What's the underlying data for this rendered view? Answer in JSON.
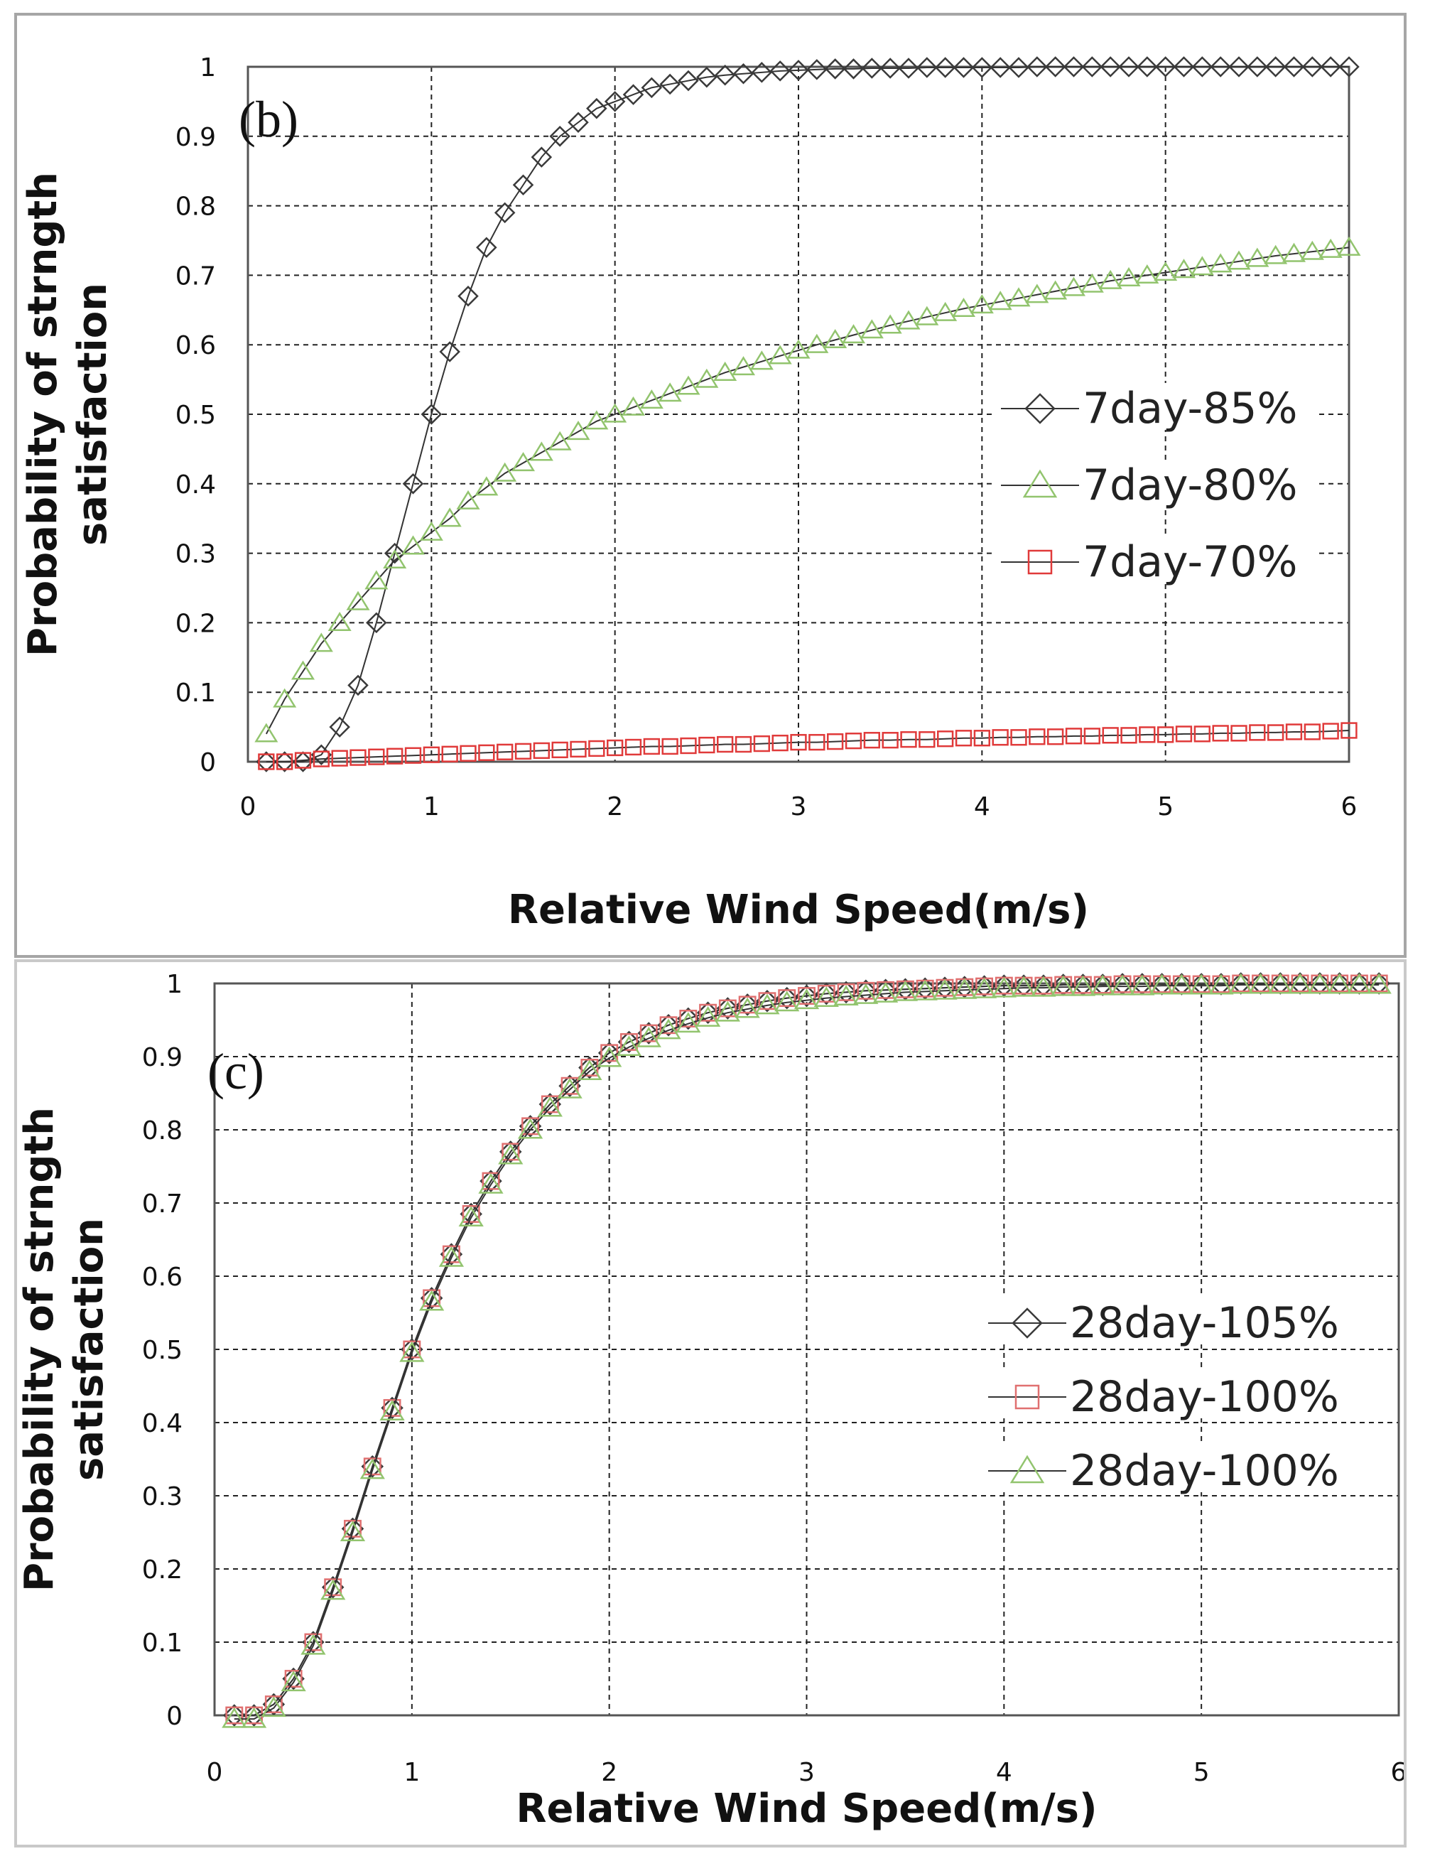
{
  "chart_data": [
    {
      "type": "line",
      "panel_label": "(b)",
      "title": "",
      "xlabel": "Relative Wind Speed(m/s)",
      "ylabel_lines": [
        "Probability of strngth",
        "satisfaction"
      ],
      "xlim": [
        0,
        6
      ],
      "ylim": [
        0,
        1
      ],
      "xticks": [
        "0",
        "1",
        "2",
        "3",
        "4",
        "5",
        "6"
      ],
      "yticks": [
        "0",
        "0.1",
        "0.2",
        "0.3",
        "0.4",
        "0.5",
        "0.6",
        "0.7",
        "0.8",
        "0.9",
        "1"
      ],
      "grid": true,
      "legend_position": "middle-right",
      "x": [
        0.1,
        0.2,
        0.3,
        0.4,
        0.5,
        0.6,
        0.7,
        0.8,
        0.9,
        1.0,
        1.1,
        1.2,
        1.3,
        1.4,
        1.5,
        1.6,
        1.7,
        1.8,
        1.9,
        2.0,
        2.1,
        2.2,
        2.3,
        2.4,
        2.5,
        2.6,
        2.7,
        2.8,
        2.9,
        3.0,
        3.1,
        3.2,
        3.3,
        3.4,
        3.5,
        3.6,
        3.7,
        3.8,
        3.9,
        4.0,
        4.1,
        4.2,
        4.3,
        4.4,
        4.5,
        4.6,
        4.7,
        4.8,
        4.9,
        5.0,
        5.1,
        5.2,
        5.3,
        5.4,
        5.5,
        5.6,
        5.7,
        5.8,
        5.9,
        6.0
      ],
      "series": [
        {
          "name": "7day-85%",
          "marker": "diamond",
          "color": "#3a3a3a",
          "values": [
            0.0,
            0.0,
            0.0,
            0.01,
            0.05,
            0.11,
            0.2,
            0.3,
            0.4,
            0.5,
            0.59,
            0.67,
            0.74,
            0.79,
            0.83,
            0.87,
            0.9,
            0.92,
            0.94,
            0.95,
            0.96,
            0.97,
            0.975,
            0.98,
            0.985,
            0.988,
            0.99,
            0.992,
            0.994,
            0.995,
            0.996,
            0.997,
            0.997,
            0.998,
            0.998,
            0.998,
            0.999,
            0.999,
            0.999,
            0.999,
            0.999,
            0.999,
            1.0,
            1.0,
            1.0,
            1.0,
            1.0,
            1.0,
            1.0,
            1.0,
            1.0,
            1.0,
            1.0,
            1.0,
            1.0,
            1.0,
            1.0,
            1.0,
            1.0,
            1.0
          ]
        },
        {
          "name": "7day-80%",
          "marker": "triangle",
          "color": "#92c46e",
          "values": [
            0.04,
            0.09,
            0.13,
            0.17,
            0.2,
            0.23,
            0.26,
            0.29,
            0.31,
            0.33,
            0.35,
            0.375,
            0.395,
            0.415,
            0.43,
            0.445,
            0.46,
            0.475,
            0.49,
            0.5,
            0.51,
            0.52,
            0.53,
            0.54,
            0.55,
            0.56,
            0.568,
            0.576,
            0.584,
            0.592,
            0.6,
            0.607,
            0.614,
            0.621,
            0.628,
            0.634,
            0.64,
            0.646,
            0.652,
            0.657,
            0.662,
            0.667,
            0.672,
            0.677,
            0.682,
            0.687,
            0.692,
            0.696,
            0.7,
            0.704,
            0.708,
            0.712,
            0.716,
            0.72,
            0.724,
            0.728,
            0.731,
            0.734,
            0.737,
            0.74
          ]
        },
        {
          "name": "7day-70%",
          "marker": "square",
          "color": "#e03a3a",
          "values": [
            0.0,
            0.0,
            0.002,
            0.004,
            0.005,
            0.006,
            0.007,
            0.008,
            0.009,
            0.01,
            0.011,
            0.012,
            0.013,
            0.014,
            0.015,
            0.016,
            0.017,
            0.018,
            0.019,
            0.02,
            0.021,
            0.022,
            0.022,
            0.023,
            0.024,
            0.025,
            0.025,
            0.026,
            0.027,
            0.028,
            0.028,
            0.029,
            0.03,
            0.031,
            0.031,
            0.032,
            0.032,
            0.033,
            0.034,
            0.034,
            0.035,
            0.035,
            0.036,
            0.036,
            0.037,
            0.037,
            0.038,
            0.038,
            0.039,
            0.039,
            0.04,
            0.04,
            0.041,
            0.041,
            0.042,
            0.042,
            0.043,
            0.043,
            0.044,
            0.045
          ]
        }
      ]
    },
    {
      "type": "line",
      "panel_label": "(c)",
      "title": "",
      "xlabel": "Relative Wind Speed(m/s)",
      "ylabel_lines": [
        "Probability of strngth",
        "satisfaction"
      ],
      "xlim": [
        0,
        6
      ],
      "ylim": [
        0,
        1
      ],
      "xticks": [
        "0",
        "1",
        "2",
        "3",
        "4",
        "5",
        "6"
      ],
      "yticks": [
        "0",
        "0.1",
        "0.2",
        "0.3",
        "0.4",
        "0.5",
        "0.6",
        "0.7",
        "0.8",
        "0.9",
        "1"
      ],
      "grid": true,
      "legend_position": "middle-right",
      "x": [
        0.1,
        0.2,
        0.3,
        0.4,
        0.5,
        0.6,
        0.7,
        0.8,
        0.9,
        1.0,
        1.1,
        1.2,
        1.3,
        1.4,
        1.5,
        1.6,
        1.7,
        1.8,
        1.9,
        2.0,
        2.1,
        2.2,
        2.3,
        2.4,
        2.5,
        2.6,
        2.7,
        2.8,
        2.9,
        3.0,
        3.1,
        3.2,
        3.3,
        3.4,
        3.5,
        3.6,
        3.7,
        3.8,
        3.9,
        4.0,
        4.1,
        4.2,
        4.3,
        4.4,
        4.5,
        4.6,
        4.7,
        4.8,
        4.9,
        5.0,
        5.1,
        5.2,
        5.3,
        5.4,
        5.5,
        5.6,
        5.7,
        5.8,
        5.9
      ],
      "series": [
        {
          "name": "28day-105%",
          "marker": "diamond",
          "color": "#3a3a3a",
          "values": [
            0.0,
            0.0,
            0.015,
            0.05,
            0.1,
            0.175,
            0.255,
            0.34,
            0.42,
            0.5,
            0.57,
            0.63,
            0.685,
            0.73,
            0.77,
            0.805,
            0.835,
            0.86,
            0.885,
            0.905,
            0.92,
            0.932,
            0.943,
            0.952,
            0.96,
            0.966,
            0.971,
            0.976,
            0.98,
            0.983,
            0.986,
            0.988,
            0.99,
            0.991,
            0.992,
            0.993,
            0.994,
            0.995,
            0.996,
            0.997,
            0.997,
            0.997,
            0.998,
            0.998,
            0.998,
            0.999,
            0.999,
            0.999,
            0.999,
            0.999,
            0.999,
            1.0,
            1.0,
            1.0,
            1.0,
            1.0,
            1.0,
            1.0,
            1.0
          ]
        },
        {
          "name": "28day-100%",
          "marker": "square",
          "color": "#e07070",
          "values": [
            0.0,
            0.0,
            0.015,
            0.05,
            0.1,
            0.175,
            0.255,
            0.34,
            0.42,
            0.5,
            0.57,
            0.63,
            0.685,
            0.73,
            0.77,
            0.805,
            0.835,
            0.86,
            0.885,
            0.905,
            0.92,
            0.932,
            0.943,
            0.952,
            0.96,
            0.966,
            0.971,
            0.976,
            0.98,
            0.983,
            0.986,
            0.988,
            0.99,
            0.991,
            0.992,
            0.993,
            0.994,
            0.995,
            0.996,
            0.997,
            0.997,
            0.997,
            0.998,
            0.998,
            0.998,
            0.999,
            0.999,
            0.999,
            0.999,
            0.999,
            0.999,
            1.0,
            1.0,
            1.0,
            1.0,
            1.0,
            1.0,
            1.0,
            1.0
          ]
        },
        {
          "name": "28day-100%",
          "marker": "triangle",
          "color": "#92c46e",
          "values": [
            -0.005,
            -0.005,
            0.01,
            0.045,
            0.095,
            0.17,
            0.25,
            0.335,
            0.415,
            0.495,
            0.565,
            0.625,
            0.68,
            0.725,
            0.765,
            0.8,
            0.83,
            0.855,
            0.88,
            0.898,
            0.913,
            0.925,
            0.936,
            0.945,
            0.953,
            0.96,
            0.965,
            0.97,
            0.974,
            0.977,
            0.98,
            0.982,
            0.984,
            0.986,
            0.988,
            0.989,
            0.99,
            0.991,
            0.992,
            0.993,
            0.994,
            0.994,
            0.995,
            0.995,
            0.996,
            0.996,
            0.996,
            0.997,
            0.997,
            0.997,
            0.997,
            0.998,
            0.998,
            0.998,
            0.998,
            0.998,
            0.998,
            0.998,
            0.998
          ]
        }
      ]
    }
  ]
}
